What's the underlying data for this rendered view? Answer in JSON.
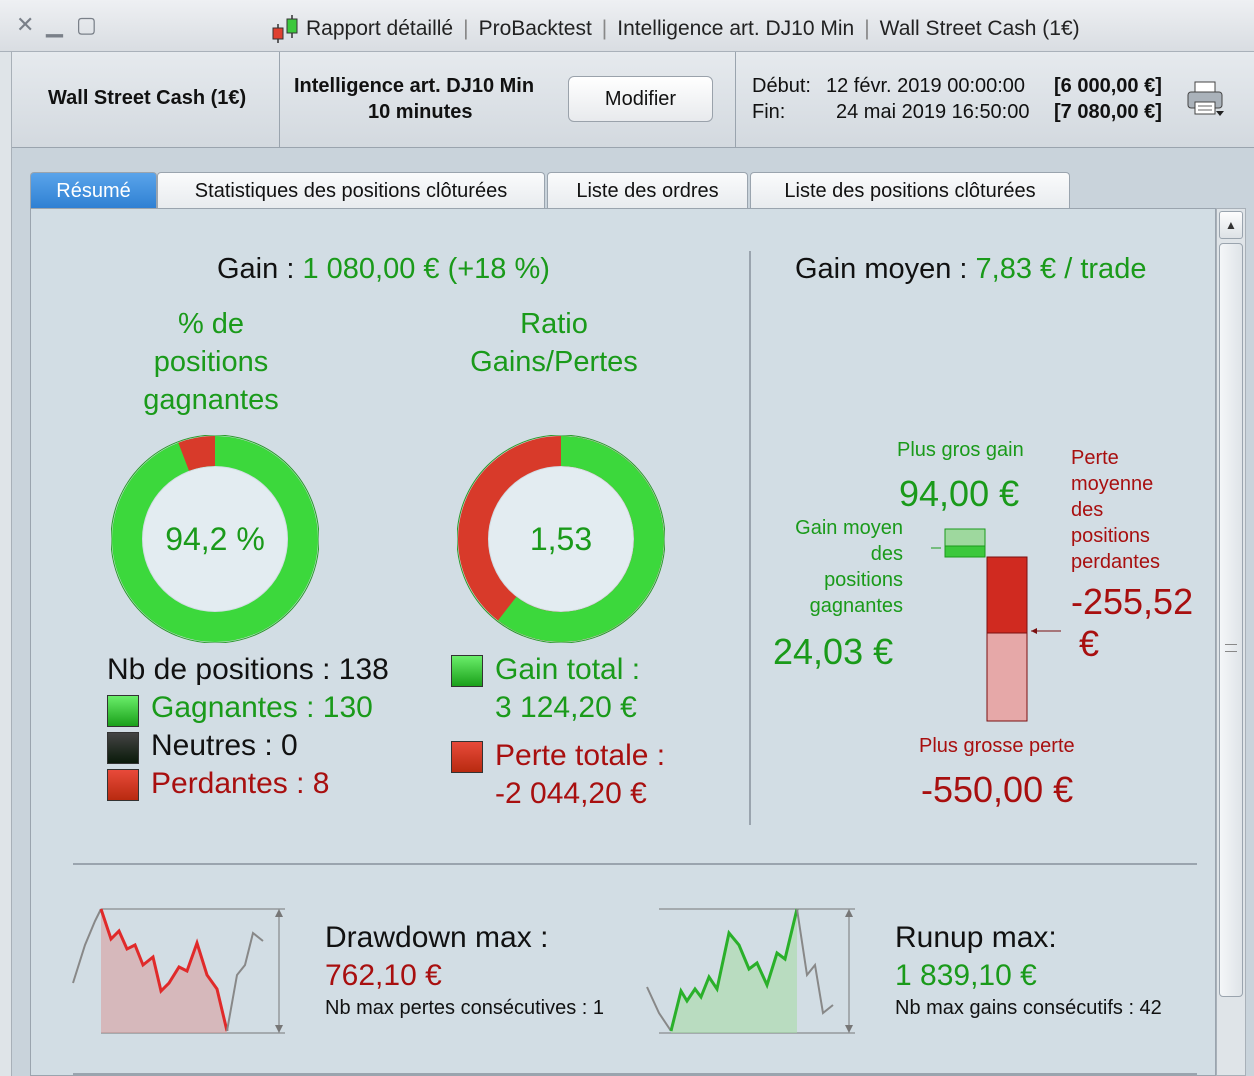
{
  "window": {
    "title_parts": [
      "Rapport détaillé",
      "ProBacktest",
      "Intelligence art. DJ10 Min",
      "Wall Street Cash (1€)"
    ]
  },
  "header": {
    "instrument": "Wall Street Cash (1€)",
    "strategy_name": "Intelligence art. DJ10 Min",
    "timeframe": "10 minutes",
    "modify_label": "Modifier",
    "start_label": "Début:",
    "start_date": "12 févr. 2019 00:00:00",
    "start_capital": "[6 000,00 €]",
    "end_label": "Fin:",
    "end_date": "24 mai 2019 16:50:00",
    "end_capital": "[7 080,00 €]"
  },
  "tabs": [
    {
      "label": "Résumé",
      "active": true
    },
    {
      "label": "Statistiques des positions clôturées",
      "active": false
    },
    {
      "label": "Liste des ordres",
      "active": false
    },
    {
      "label": "Liste des positions clôturées",
      "active": false
    }
  ],
  "summary": {
    "gain_label": "Gain :",
    "gain_value": "1 080,00 € (+18 %)",
    "avg_gain_label": "Gain moyen :",
    "avg_gain_value": "7,83 € / trade",
    "winning_pct_title_lines": [
      "% de",
      "positions",
      "gagnantes"
    ],
    "winning_pct_value": "94,2 %",
    "winning_fraction": 0.942,
    "ratio_title_lines": [
      "Ratio",
      "Gains/Pertes"
    ],
    "ratio_value": "1,53",
    "ratio_gain_fraction": 0.6045,
    "nb_positions": "Nb de positions : 138",
    "gagnantes": "Gagnantes : 130",
    "neutres": "Neutres : 0",
    "perdantes": "Perdantes : 8",
    "gain_total_label": "Gain total :",
    "gain_total_value": "3 124,20 €",
    "perte_totale_label": "Perte totale :",
    "perte_totale_value": "-2 044,20 €",
    "colors": {
      "green": "#1a9a1a",
      "red": "#a80f0f",
      "ring_green": "#3cd83c",
      "ring_red": "#d83a2a"
    }
  },
  "gain_chart": {
    "max_gain_label": "Plus gros gain",
    "max_gain_value": "94,00 €",
    "avg_win_label_lines": [
      "Gain moyen",
      "des",
      "positions",
      "gagnantes"
    ],
    "avg_win_value": "24,03 €",
    "avg_loss_label_lines": [
      "Perte",
      "moyenne",
      "des",
      "positions",
      "perdantes"
    ],
    "avg_loss_value_lines": [
      "-255,52",
      "€"
    ],
    "max_loss_label": "Plus grosse perte",
    "max_loss_value": "-550,00 €"
  },
  "drawdown": {
    "title": "Drawdown max :",
    "value": "762,10 €",
    "consec_label": "Nb max pertes consécutives : 1"
  },
  "runup": {
    "title": "Runup max:",
    "value": "1 839,10 €",
    "consec_label": "Nb max gains consécutifs : 42"
  }
}
